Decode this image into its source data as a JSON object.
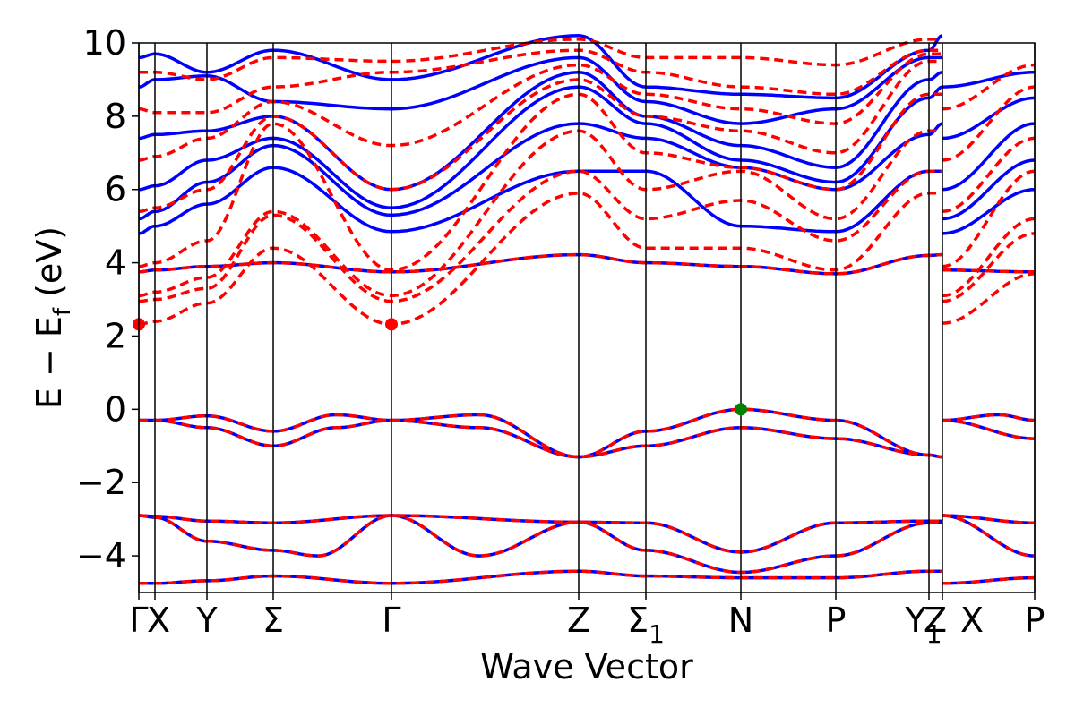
{
  "chart_data": {
    "type": "line",
    "xlabel": "Wave Vector",
    "ylabel": "E − E",
    "ylabel_subscript": "f",
    "ylabel_unit": " (eV)",
    "ylim": [
      -5,
      10
    ],
    "yticks": [
      -4,
      -2,
      0,
      2,
      4,
      6,
      8,
      10
    ],
    "ytick_labels": [
      "−4",
      "−2",
      "0",
      "2",
      "4",
      "6",
      "8",
      "10"
    ],
    "xlim": [
      0,
      1
    ],
    "kpoints": [
      {
        "x": 0.0,
        "label": "Γ",
        "sub": ""
      },
      {
        "x": 0.018,
        "label": "X",
        "sub": ""
      },
      {
        "x": 0.076,
        "label": "Y",
        "sub": ""
      },
      {
        "x": 0.15,
        "label": "Σ",
        "sub": ""
      },
      {
        "x": 0.282,
        "label": "Γ",
        "sub": ""
      },
      {
        "x": 0.491,
        "label": "Z",
        "sub": ""
      },
      {
        "x": 0.566,
        "label": "Σ",
        "sub": "1"
      },
      {
        "x": 0.672,
        "label": "N",
        "sub": ""
      },
      {
        "x": 0.778,
        "label": "P",
        "sub": ""
      },
      {
        "x": 0.882,
        "label": "Y",
        "sub": "1"
      },
      {
        "x": 0.897,
        "label": "Z",
        "sub": ""
      },
      {
        "x": 1.0,
        "label": "P",
        "sub": ""
      }
    ],
    "segment_break": [
      0.897,
      0.897
    ],
    "extra_tick_label": {
      "x": 0.93,
      "label": "X"
    },
    "series": [
      {
        "values_at_kpoints": [
          [
            -4.75,
            -4.75,
            -4.68,
            -4.55,
            -4.75,
            -4.42,
            -4.58,
            -4.6,
            -4.6,
            -4.42,
            -4.75,
            -4.6
          ]
        ]
      },
      {
        "values_at_kpoints": [
          [
            -2.9,
            -2.95,
            -3.05,
            -3.1,
            -2.9,
            -3.08,
            -3.1,
            -3.9,
            -3.1,
            -3.05,
            -2.9,
            -3.1
          ]
        ]
      }
    ],
    "markers": [
      {
        "x": 0.0,
        "y": 2.32,
        "color": "#ff0000"
      },
      {
        "x": 0.282,
        "y": 2.32,
        "color": "#ff0000"
      },
      {
        "x": 0.672,
        "y": 0.0,
        "color": "#008000"
      }
    ],
    "colors": {
      "solid": "#0000ff",
      "dashed": "#ff0000",
      "axis": "#000000"
    }
  }
}
